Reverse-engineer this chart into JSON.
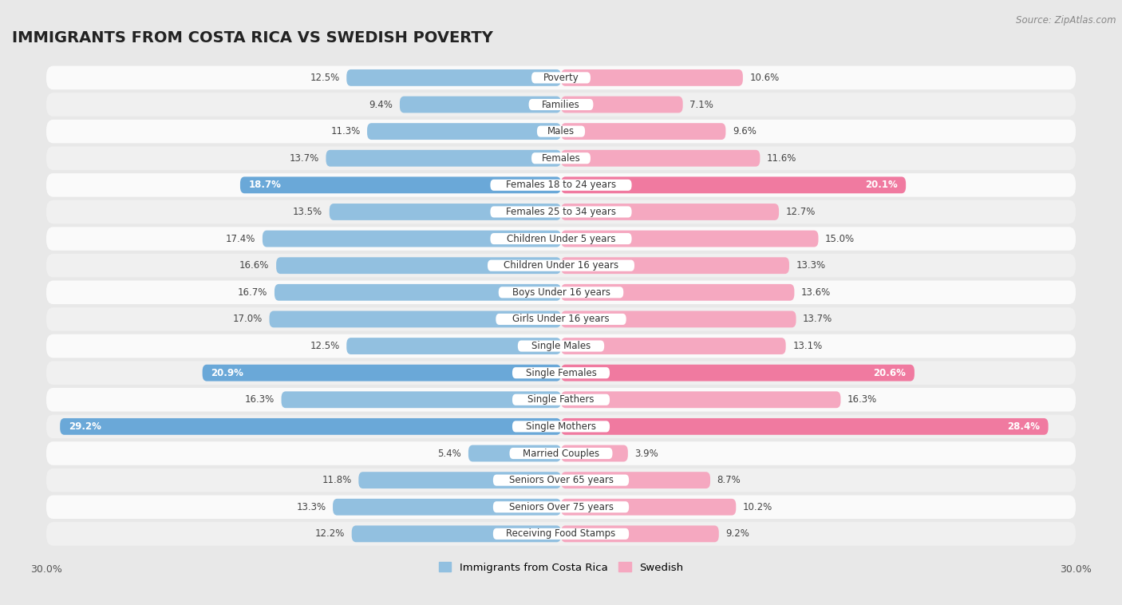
{
  "title": "IMMIGRANTS FROM COSTA RICA VS SWEDISH POVERTY",
  "source": "Source: ZipAtlas.com",
  "categories": [
    "Poverty",
    "Families",
    "Males",
    "Females",
    "Females 18 to 24 years",
    "Females 25 to 34 years",
    "Children Under 5 years",
    "Children Under 16 years",
    "Boys Under 16 years",
    "Girls Under 16 years",
    "Single Males",
    "Single Females",
    "Single Fathers",
    "Single Mothers",
    "Married Couples",
    "Seniors Over 65 years",
    "Seniors Over 75 years",
    "Receiving Food Stamps"
  ],
  "left_values": [
    12.5,
    9.4,
    11.3,
    13.7,
    18.7,
    13.5,
    17.4,
    16.6,
    16.7,
    17.0,
    12.5,
    20.9,
    16.3,
    29.2,
    5.4,
    11.8,
    13.3,
    12.2
  ],
  "right_values": [
    10.6,
    7.1,
    9.6,
    11.6,
    20.1,
    12.7,
    15.0,
    13.3,
    13.6,
    13.7,
    13.1,
    20.6,
    16.3,
    28.4,
    3.9,
    8.7,
    10.2,
    9.2
  ],
  "left_color": "#92c0e0",
  "right_color": "#f5a8c0",
  "highlight_left_color": "#6aa8d8",
  "highlight_right_color": "#f07aa0",
  "background_color": "#e8e8e8",
  "row_bg_color": "#f0f0f0",
  "row_alt_color": "#fafafa",
  "xlim": 30.0,
  "legend_left": "Immigrants from Costa Rica",
  "legend_right": "Swedish",
  "title_fontsize": 14,
  "label_fontsize": 8.5,
  "value_fontsize": 8.5,
  "bar_height": 0.62,
  "highlight_rows": [
    4,
    11,
    13
  ]
}
